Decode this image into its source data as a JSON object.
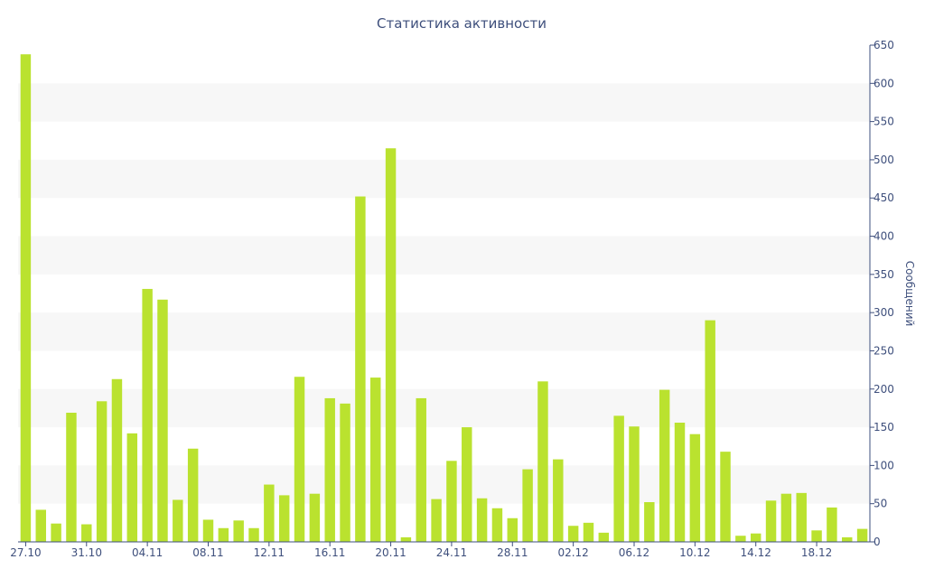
{
  "chart_data": {
    "type": "bar",
    "title": "Статистика активности",
    "ylabel": "Сообщений",
    "xlabel": "",
    "ylim": [
      0,
      650
    ],
    "y_ticks": [
      0,
      50,
      100,
      150,
      200,
      250,
      300,
      350,
      400,
      450,
      500,
      550,
      600,
      650
    ],
    "y_axis_side": "right",
    "grid": "alternating horizontal bands",
    "x_tick_labels": [
      "27.10",
      "31.10",
      "04.11",
      "08.11",
      "12.11",
      "16.11",
      "20.11",
      "24.11",
      "28.11",
      "02.12",
      "06.12",
      "10.12",
      "14.12",
      "18.12"
    ],
    "categories": [
      "27.10",
      "28.10",
      "29.10",
      "30.10",
      "31.10",
      "01.11",
      "02.11",
      "03.11",
      "04.11",
      "05.11",
      "06.11",
      "07.11",
      "08.11",
      "09.11",
      "10.11",
      "11.11",
      "12.11",
      "13.11",
      "14.11",
      "15.11",
      "16.11",
      "17.11",
      "18.11",
      "19.11",
      "20.11",
      "21.11",
      "22.11",
      "23.11",
      "24.11",
      "25.11",
      "26.11",
      "27.11",
      "28.11",
      "29.11",
      "30.11",
      "01.12",
      "02.12",
      "03.12",
      "04.12",
      "05.12",
      "06.12",
      "07.12",
      "08.12",
      "09.12",
      "10.12",
      "11.12",
      "12.12",
      "13.12",
      "14.12",
      "15.12",
      "16.12",
      "17.12",
      "18.12",
      "19.12",
      "20.12",
      "21.12"
    ],
    "values": [
      638,
      42,
      24,
      169,
      23,
      184,
      213,
      142,
      331,
      317,
      55,
      122,
      29,
      18,
      28,
      18,
      75,
      61,
      216,
      63,
      188,
      181,
      452,
      215,
      515,
      6,
      188,
      56,
      106,
      150,
      57,
      44,
      31,
      95,
      210,
      108,
      21,
      25,
      12,
      165,
      151,
      52,
      199,
      156,
      141,
      290,
      118,
      8,
      11,
      54,
      63,
      64,
      15,
      45,
      6,
      17
    ],
    "colors": {
      "bar": "#bae22f",
      "band": "#f7f7f7",
      "text": "#3e4f7c",
      "axis": "#3e4f7c"
    }
  }
}
